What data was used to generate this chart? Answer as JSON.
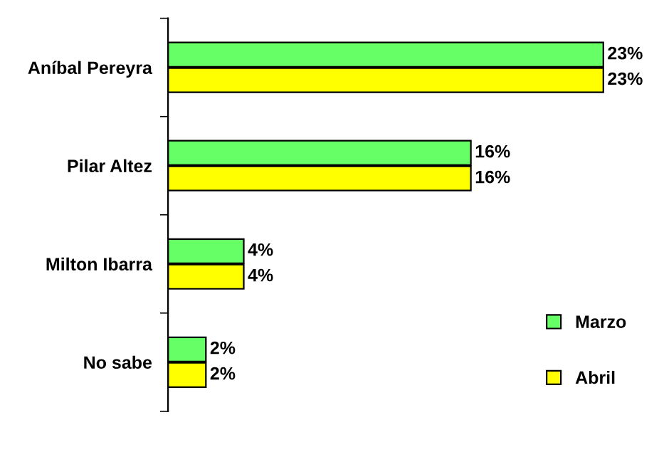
{
  "chart_data": {
    "type": "bar",
    "orientation": "horizontal",
    "categories": [
      "Aníbal Pereyra",
      "Pilar Altez",
      "Milton Ibarra",
      "No sabe"
    ],
    "series": [
      {
        "name": "Marzo",
        "color": "#66ff66",
        "values": [
          23,
          16,
          4,
          2
        ],
        "value_labels": [
          "23%",
          "16%",
          "4%",
          "2%"
        ]
      },
      {
        "name": "Abril",
        "color": "#ffff00",
        "values": [
          23,
          16,
          4,
          2
        ],
        "value_labels": [
          "23%",
          "16%",
          "4%",
          "2%"
        ]
      }
    ],
    "legend": "bottom right",
    "grid": false
  }
}
